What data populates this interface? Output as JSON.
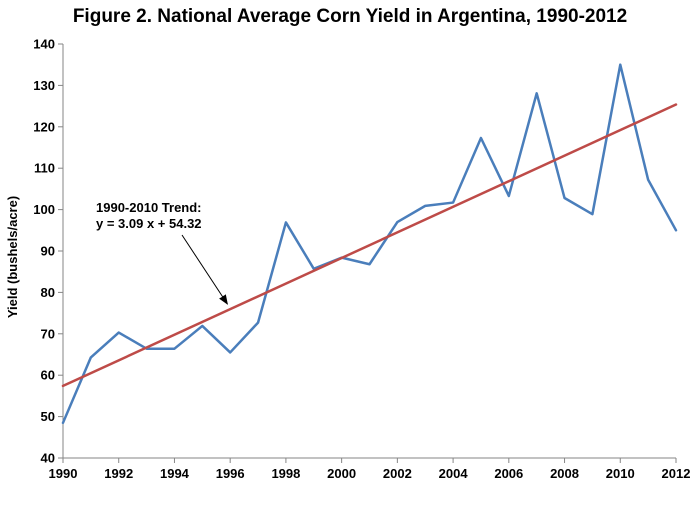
{
  "chart_data": {
    "type": "line",
    "title": "Figure 2. National Average Corn Yield in Argentina, 1990-2012",
    "xlabel": "",
    "ylabel": "Yield (bushels/acre)",
    "xlim": [
      1990,
      2012
    ],
    "ylim": [
      40,
      140
    ],
    "x_ticks": [
      "1990",
      "1992",
      "1994",
      "1996",
      "1998",
      "2000",
      "2002",
      "2004",
      "2006",
      "2008",
      "2010",
      "2012"
    ],
    "y_ticks": [
      "40",
      "50",
      "60",
      "70",
      "80",
      "90",
      "100",
      "110",
      "120",
      "130",
      "140"
    ],
    "grid": false,
    "legend": "none",
    "x": [
      1990,
      1991,
      1992,
      1993,
      1994,
      1995,
      1996,
      1997,
      1998,
      1999,
      2000,
      2001,
      2002,
      2003,
      2004,
      2005,
      2006,
      2007,
      2008,
      2009,
      2010,
      2011,
      2012
    ],
    "series": [
      {
        "values": [
          48.5,
          64.3,
          70.3,
          66.4,
          66.4,
          71.9,
          65.5,
          72.7,
          96.9,
          85.7,
          88.4,
          86.8,
          97.0,
          100.9,
          101.7,
          117.3,
          103.3,
          128.1,
          102.8,
          98.9,
          135.0,
          107.2,
          95.0
        ],
        "color": "#4a7ebb"
      },
      {
        "values": [
          57.41,
          125.39
        ],
        "x": [
          1990,
          2012
        ],
        "color": "#be4b48"
      }
    ],
    "annotations": [
      {
        "lines": [
          "1990-2010 Trend:",
          "y = 3.09 x + 54.32"
        ],
        "arrow_to": [
          1995.9,
          77.2
        ]
      }
    ]
  }
}
